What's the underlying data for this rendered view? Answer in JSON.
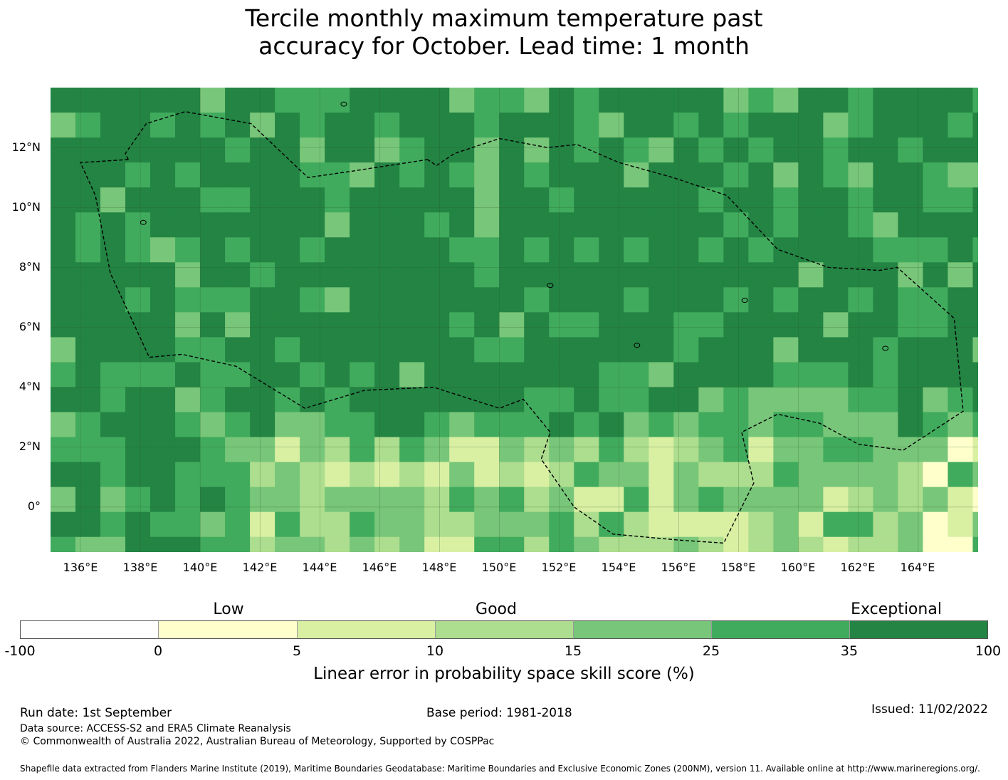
{
  "title": {
    "line1": "Tercile monthly maximum temperature past",
    "line2": "accuracy for October. Lead time: 1 month"
  },
  "map": {
    "y_ticks": [
      "12°N",
      "10°N",
      "8°N",
      "6°N",
      "4°N",
      "2°N",
      "0°"
    ],
    "x_ticks": [
      "136°E",
      "138°E",
      "140°E",
      "142°E",
      "144°E",
      "146°E",
      "148°E",
      "150°E",
      "152°E",
      "154°E",
      "156°E",
      "158°E",
      "160°E",
      "162°E",
      "164°E"
    ],
    "lon_range": [
      135,
      166
    ],
    "lat_range": [
      -1.5,
      14
    ]
  },
  "legend": {
    "categories": [
      "Low",
      "Good",
      "Exceptional"
    ],
    "ticks": [
      "-100",
      "0",
      "5",
      "10",
      "15",
      "25",
      "35",
      "100"
    ],
    "colors": [
      "#ffffff",
      "#ffffcc",
      "#d9f0a3",
      "#addd8e",
      "#78c679",
      "#41ab5d",
      "#238443"
    ],
    "label": "Linear error in probability space skill score (%)"
  },
  "footer": {
    "run_date": "Run date: 1st September",
    "base_period": "Base period: 1981-2018",
    "issued": "Issued: 11/02/2022",
    "data_source": "Data source: ACCESS-S2 and ERA5 Climate Reanalysis",
    "copyright": "© Commonwealth of Australia 2022, Australian Bureau of Meteorology, Supported by COSPPac",
    "shapefile": "Shapefile data extracted from Flanders Marine Institute (2019), Maritime Boundaries Geodatabase: Maritime Boundaries and Exclusive Economic Zones (200NM), version 11. Available online at http://www.marineregions.org/."
  }
}
